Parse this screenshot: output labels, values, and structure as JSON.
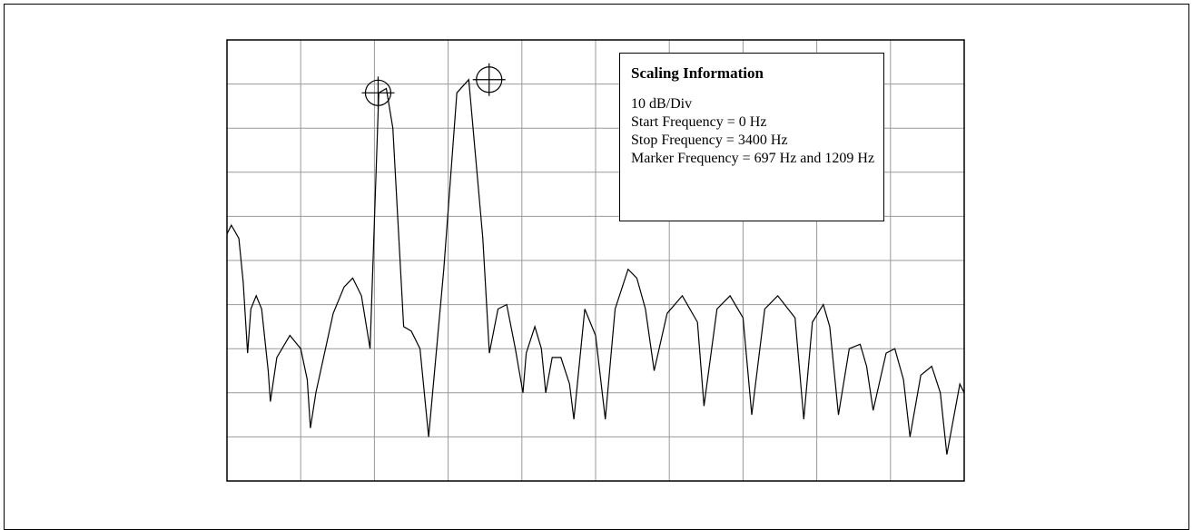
{
  "chart_data": {
    "type": "line",
    "title": "",
    "xlabel": "",
    "ylabel": "",
    "grid": true,
    "xlim": [
      0,
      3400
    ],
    "ylim": [
      0,
      10
    ],
    "x_divisions": 10,
    "y_divisions": 10,
    "series": [
      {
        "values": [
          [
            0,
            5.6
          ],
          [
            20,
            5.8
          ],
          [
            55,
            5.5
          ],
          [
            75,
            4.5
          ],
          [
            95,
            2.9
          ],
          [
            110,
            3.9
          ],
          [
            135,
            4.2
          ],
          [
            160,
            3.9
          ],
          [
            190,
            2.5
          ],
          [
            200,
            1.8
          ],
          [
            230,
            2.8
          ],
          [
            290,
            3.3
          ],
          [
            340,
            3.0
          ],
          [
            370,
            2.3
          ],
          [
            385,
            1.2
          ],
          [
            410,
            2.0
          ],
          [
            490,
            3.8
          ],
          [
            540,
            4.4
          ],
          [
            580,
            4.6
          ],
          [
            620,
            4.2
          ],
          [
            660,
            3.0
          ],
          [
            700,
            8.8
          ],
          [
            735,
            8.9
          ],
          [
            765,
            8.0
          ],
          [
            815,
            3.5
          ],
          [
            850,
            3.4
          ],
          [
            890,
            3.0
          ],
          [
            930,
            1.0
          ],
          [
            1000,
            4.8
          ],
          [
            1060,
            8.8
          ],
          [
            1115,
            9.1
          ],
          [
            1180,
            5.5
          ],
          [
            1210,
            2.9
          ],
          [
            1250,
            3.9
          ],
          [
            1290,
            4.0
          ],
          [
            1330,
            3.0
          ],
          [
            1365,
            2.0
          ],
          [
            1380,
            2.9
          ],
          [
            1420,
            3.5
          ],
          [
            1450,
            3.0
          ],
          [
            1470,
            2.0
          ],
          [
            1500,
            2.8
          ],
          [
            1540,
            2.8
          ],
          [
            1580,
            2.2
          ],
          [
            1600,
            1.4
          ],
          [
            1650,
            3.9
          ],
          [
            1700,
            3.3
          ],
          [
            1745,
            1.4
          ],
          [
            1790,
            3.9
          ],
          [
            1850,
            4.8
          ],
          [
            1890,
            4.6
          ],
          [
            1930,
            3.9
          ],
          [
            1970,
            2.5
          ],
          [
            2030,
            3.8
          ],
          [
            2100,
            4.2
          ],
          [
            2170,
            3.6
          ],
          [
            2200,
            1.7
          ],
          [
            2260,
            3.9
          ],
          [
            2320,
            4.2
          ],
          [
            2380,
            3.7
          ],
          [
            2420,
            1.5
          ],
          [
            2480,
            3.9
          ],
          [
            2540,
            4.2
          ],
          [
            2620,
            3.7
          ],
          [
            2660,
            1.4
          ],
          [
            2700,
            3.6
          ],
          [
            2750,
            4.0
          ],
          [
            2780,
            3.5
          ],
          [
            2820,
            1.5
          ],
          [
            2870,
            3.0
          ],
          [
            2920,
            3.1
          ],
          [
            2950,
            2.6
          ],
          [
            2980,
            1.6
          ],
          [
            3040,
            2.9
          ],
          [
            3080,
            3.0
          ],
          [
            3120,
            2.3
          ],
          [
            3150,
            1.0
          ],
          [
            3200,
            2.4
          ],
          [
            3250,
            2.6
          ],
          [
            3290,
            2.0
          ],
          [
            3320,
            0.6
          ],
          [
            3380,
            2.2
          ],
          [
            3400,
            2.0
          ]
        ]
      }
    ],
    "markers": [
      {
        "x": 697,
        "y": 8.8
      },
      {
        "x": 1209,
        "y": 9.1
      }
    ]
  },
  "scaling_info": {
    "title": "Scaling Information",
    "line1": "10 dB/Div",
    "line2": "Start Frequency = 0 Hz",
    "line3": "Stop Frequency = 3400 Hz",
    "line4": "Marker Frequency = 697 Hz and 1209 Hz"
  },
  "colors": {
    "grid": "#999999",
    "trace": "#000000",
    "axes": "#000000"
  }
}
